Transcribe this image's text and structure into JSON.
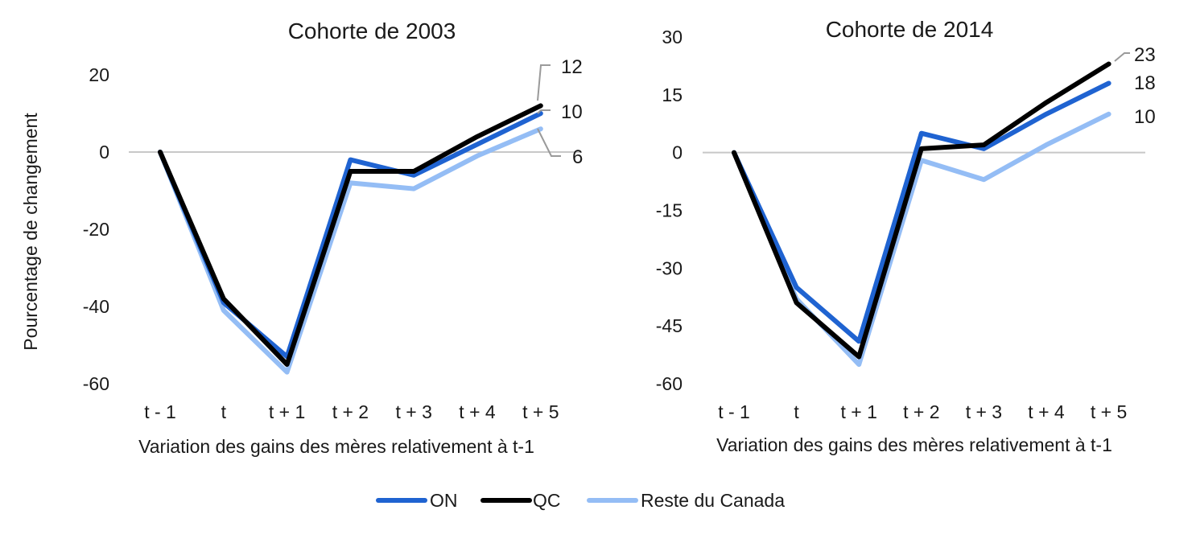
{
  "colors": {
    "ON": "#1f63d1",
    "QC": "#000000",
    "Reste du Canada": "#94bdf5",
    "zero_line": "#c8c8c8",
    "leader": "#9a9a9a"
  },
  "legend": {
    "items": [
      "ON",
      "QC",
      "Reste du Canada"
    ],
    "position": "bottom"
  },
  "chart_data": [
    {
      "type": "line",
      "title": "Cohorte de 2003",
      "xlabel": "Variation des gains des mères relativement à t-1",
      "ylabel": "Pourcentage de changement",
      "categories": [
        "t - 1",
        "t",
        "t + 1",
        "t + 2",
        "t + 3",
        "t + 4",
        "t + 5"
      ],
      "ylim": [
        -60,
        20
      ],
      "yticks": [
        "20",
        "0",
        "-20",
        "-40",
        "-60"
      ],
      "grid": false,
      "series": [
        {
          "name": "ON",
          "values": [
            0,
            -39,
            -53,
            -2,
            -6,
            2,
            10
          ]
        },
        {
          "name": "QC",
          "values": [
            0,
            -38,
            -55,
            -5,
            -5,
            4,
            12
          ]
        },
        {
          "name": "Reste du Canada",
          "values": [
            0,
            -41,
            -57,
            -8,
            -9.5,
            -1,
            6
          ]
        }
      ],
      "end_labels": [
        "10",
        "12",
        "6"
      ]
    },
    {
      "type": "line",
      "title": "Cohorte de 2014",
      "xlabel": "Variation des gains des mères relativement à t-1",
      "ylabel": "",
      "categories": [
        "t - 1",
        "t",
        "t + 1",
        "t + 2",
        "t + 3",
        "t + 4",
        "t + 5"
      ],
      "ylim": [
        -60,
        30
      ],
      "yticks": [
        "30",
        "15",
        "0",
        "-15",
        "-30",
        "-45",
        "-60"
      ],
      "grid": false,
      "series": [
        {
          "name": "ON",
          "values": [
            0,
            -35,
            -49,
            5,
            1,
            10,
            18
          ]
        },
        {
          "name": "QC",
          "values": [
            0,
            -39,
            -53,
            1,
            2,
            13,
            23
          ]
        },
        {
          "name": "Reste du Canada",
          "values": [
            0,
            -38,
            -55,
            -2,
            -7,
            2,
            10
          ]
        }
      ],
      "end_labels": [
        "18",
        "23",
        "10"
      ]
    }
  ]
}
